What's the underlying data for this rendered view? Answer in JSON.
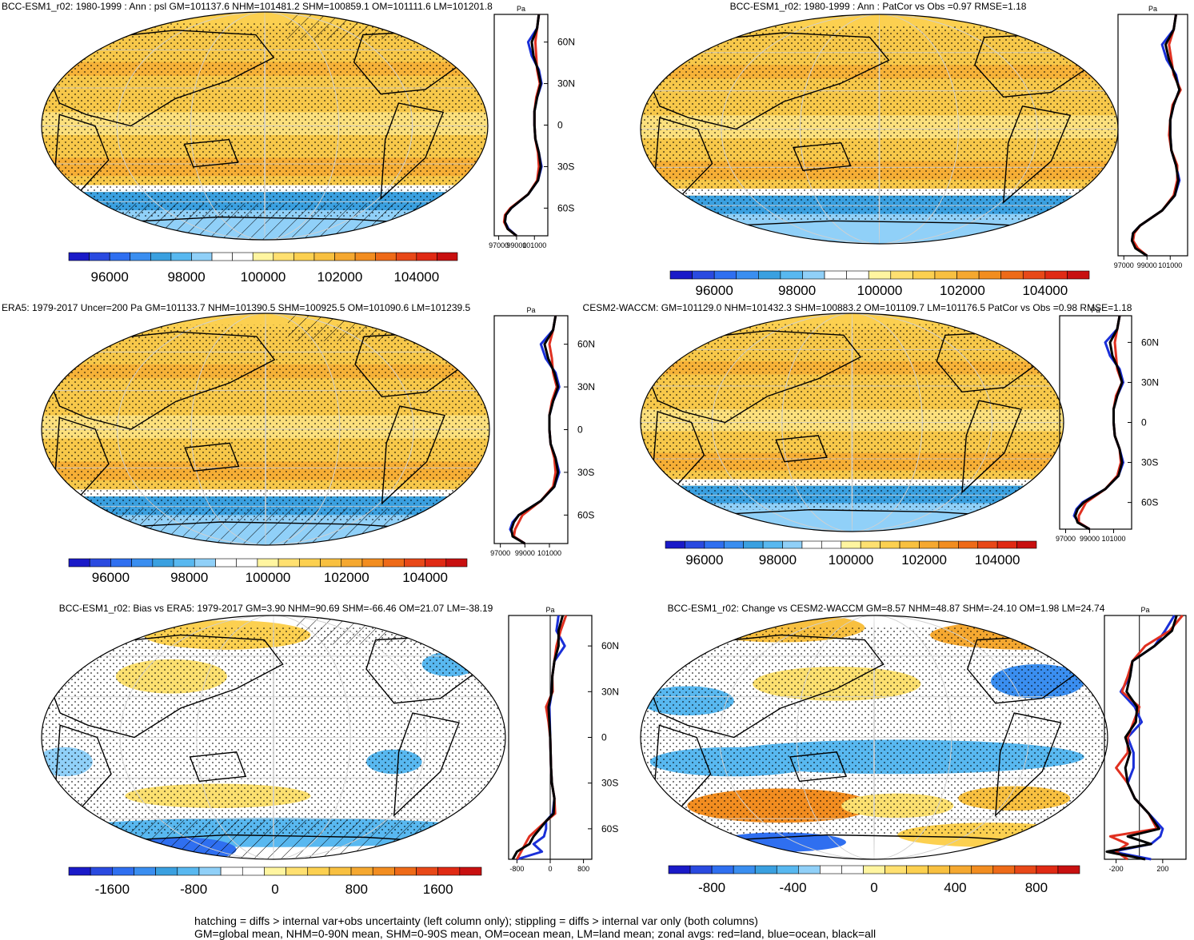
{
  "figure": {
    "footnote_line1": "hatching = diffs > internal var+obs uncertainty (left column only); stippling = diffs > internal var only (both columns)",
    "footnote_line2": "GM=global mean, NHM=0-90N mean, SHM=0-90S mean, OM=ocean mean, LM=land mean; zonal avgs: red=land, blue=ocean, black=all"
  },
  "colors": {
    "ocean_band": "#3aa0e0",
    "land": "#e03020",
    "ocean": "#1a2fd8",
    "all": "#000000",
    "map_base": "#f7c84a"
  },
  "chart_data": [
    {
      "id": "model_climatology",
      "type": "map",
      "title": "BCC-ESM1_r02: 1980-1999 : Ann : psl GM=101137.6 NHM=101481.2 SHM=100859.1 OM=101111.6 LM=101201.8",
      "colorbar": {
        "ticks": [
          "96000",
          "98000",
          "100000",
          "102000",
          "104000"
        ],
        "colors": [
          "#1a1ac8",
          "#2a4ae0",
          "#2f6ff0",
          "#3a8ef0",
          "#3aa0e0",
          "#58b8f0",
          "#90d0f8",
          "#ffffff",
          "#ffffff",
          "#fff5a0",
          "#ffe070",
          "#fcd050",
          "#f8c040",
          "#f5a830",
          "#f28d20",
          "#ee6a18",
          "#e84818",
          "#e02a14",
          "#c81010"
        ]
      },
      "zonal_profile": {
        "unit": "Pa",
        "xticks": [
          "97000",
          "99000",
          "101000"
        ],
        "yticks": [
          "60N",
          "30N",
          "0",
          "30S",
          "60S"
        ],
        "xlim": [
          96500,
          102500
        ],
        "lat": [
          80,
          70,
          60,
          50,
          40,
          30,
          20,
          10,
          0,
          -10,
          -20,
          -30,
          -40,
          -50,
          -60,
          -65,
          -70,
          -75,
          -80
        ],
        "land": [
          101500,
          101300,
          101100,
          101200,
          101300,
          101600,
          101200,
          101000,
          101000,
          101100,
          101400,
          101500,
          101300,
          100300,
          98300,
          97700,
          97600,
          98000,
          99000
        ],
        "ocean": [
          101500,
          101300,
          100300,
          100700,
          101500,
          101800,
          101300,
          101000,
          101000,
          101100,
          101500,
          101800,
          101400,
          100300,
          98400,
          97800,
          97700,
          98100,
          99000
        ],
        "all": [
          101500,
          101300,
          100700,
          100900,
          101400,
          101700,
          101300,
          101000,
          101000,
          101100,
          101500,
          101700,
          101400,
          100300,
          98400,
          97800,
          97700,
          98000,
          99000
        ]
      }
    },
    {
      "id": "model_patcor",
      "type": "map",
      "title": "BCC-ESM1_r02: 1980-1999 : Ann : PatCor vs Obs =0.97 RMSE=1.18",
      "colorbar": {
        "ticks": [
          "96000",
          "98000",
          "100000",
          "102000",
          "104000"
        ],
        "colors": [
          "#1a1ac8",
          "#2a4ae0",
          "#2f6ff0",
          "#3a8ef0",
          "#3aa0e0",
          "#58b8f0",
          "#90d0f8",
          "#ffffff",
          "#ffffff",
          "#fff5a0",
          "#ffe070",
          "#fcd050",
          "#f8c040",
          "#f5a830",
          "#f28d20",
          "#ee6a18",
          "#e84818",
          "#e02a14",
          "#c81010"
        ]
      },
      "zonal_profile": {
        "unit": "Pa",
        "xticks": [
          "97000",
          "99000",
          "101000"
        ],
        "yticks": [],
        "xlim": [
          96500,
          102500
        ],
        "lat": [
          80,
          70,
          60,
          50,
          40,
          30,
          20,
          10,
          0,
          -10,
          -20,
          -30,
          -40,
          -50,
          -60,
          -65,
          -70,
          -75,
          -80
        ],
        "land": [
          101500,
          101300,
          100900,
          101100,
          101300,
          101900,
          101200,
          101000,
          100900,
          101100,
          101600,
          101600,
          101300,
          100300,
          98400,
          97900,
          97800,
          98200,
          99000
        ],
        "ocean": [
          101500,
          101300,
          100300,
          100700,
          101500,
          101800,
          101300,
          101000,
          101000,
          101100,
          101500,
          101800,
          101400,
          100300,
          98400,
          97800,
          97700,
          98100,
          99000
        ],
        "all": [
          101500,
          101300,
          100600,
          100900,
          101400,
          101800,
          101300,
          101000,
          101000,
          101100,
          101500,
          101700,
          101400,
          100300,
          98400,
          97800,
          97700,
          98000,
          99000
        ]
      }
    },
    {
      "id": "obs_climatology",
      "type": "map",
      "title": "ERA5: 1979-2017 Uncer=200 Pa GM=101133.7 NHM=101390.5 SHM=100925.5 OM=101090.6 LM=101239.5",
      "colorbar": {
        "ticks": [
          "96000",
          "98000",
          "100000",
          "102000",
          "104000"
        ],
        "colors": [
          "#1a1ac8",
          "#2a4ae0",
          "#2f6ff0",
          "#3a8ef0",
          "#3aa0e0",
          "#58b8f0",
          "#90d0f8",
          "#ffffff",
          "#ffffff",
          "#fff5a0",
          "#ffe070",
          "#fcd050",
          "#f8c040",
          "#f5a830",
          "#f28d20",
          "#ee6a18",
          "#e84818",
          "#e02a14",
          "#c81010"
        ]
      },
      "zonal_profile": {
        "unit": "Pa",
        "xticks": [
          "97000",
          "99000",
          "101000"
        ],
        "yticks": [
          "60N",
          "30N",
          "0",
          "30S",
          "60S"
        ],
        "xlim": [
          96500,
          102500
        ],
        "lat": [
          80,
          70,
          60,
          50,
          40,
          30,
          20,
          10,
          0,
          -10,
          -20,
          -30,
          -40,
          -50,
          -60,
          -65,
          -70,
          -75,
          -80
        ],
        "land": [
          101500,
          101300,
          101000,
          101200,
          101300,
          101600,
          101200,
          101000,
          101000,
          101100,
          101400,
          101500,
          101300,
          100300,
          98800,
          98500,
          98200,
          98100,
          99000
        ],
        "ocean": [
          101500,
          101300,
          100300,
          100700,
          101500,
          101800,
          101300,
          101000,
          101000,
          101100,
          101500,
          101800,
          101400,
          100300,
          98500,
          98000,
          97800,
          98100,
          99000
        ],
        "all": [
          101500,
          101300,
          100600,
          100900,
          101400,
          101700,
          101300,
          101000,
          101000,
          101100,
          101500,
          101700,
          101400,
          100300,
          98500,
          98100,
          97900,
          98000,
          99000
        ]
      }
    },
    {
      "id": "cmip_reference",
      "type": "map",
      "title": "CESM2-WACCM: GM=101129.0 NHM=101432.3 SHM=100883.2 OM=101109.7 LM=101176.5 PatCor vs Obs =0.98 RMSE=1.18",
      "colorbar": {
        "ticks": [
          "96000",
          "98000",
          "100000",
          "102000",
          "104000"
        ],
        "colors": [
          "#1a1ac8",
          "#2a4ae0",
          "#2f6ff0",
          "#3a8ef0",
          "#3aa0e0",
          "#58b8f0",
          "#90d0f8",
          "#ffffff",
          "#ffffff",
          "#fff5a0",
          "#ffe070",
          "#fcd050",
          "#f8c040",
          "#f5a830",
          "#f28d20",
          "#ee6a18",
          "#e84818",
          "#e02a14",
          "#c81010"
        ]
      },
      "zonal_profile": {
        "unit": "Pa",
        "xticks": [
          "97000",
          "99000",
          "101000"
        ],
        "yticks": [
          "60N",
          "30N",
          "0",
          "30S",
          "60S"
        ],
        "xlim": [
          96500,
          102500
        ],
        "lat": [
          80,
          70,
          60,
          50,
          40,
          30,
          20,
          10,
          0,
          -10,
          -20,
          -30,
          -40,
          -50,
          -60,
          -65,
          -70,
          -75,
          -80
        ],
        "land": [
          101500,
          101300,
          101100,
          101200,
          101300,
          101700,
          101200,
          101000,
          101000,
          101100,
          101500,
          101600,
          101300,
          100300,
          98700,
          98400,
          98100,
          98100,
          99000
        ],
        "ocean": [
          101500,
          101300,
          100300,
          100700,
          101500,
          101800,
          101300,
          101000,
          101000,
          101100,
          101500,
          101800,
          101400,
          100300,
          98400,
          97900,
          97700,
          98100,
          99000
        ],
        "all": [
          101500,
          101300,
          100700,
          100900,
          101400,
          101700,
          101300,
          101000,
          101000,
          101100,
          101500,
          101700,
          101400,
          100300,
          98500,
          98000,
          97800,
          98000,
          99000
        ]
      }
    },
    {
      "id": "bias_vs_obs",
      "type": "map",
      "title": "BCC-ESM1_r02: Bias vs ERA5: 1979-2017 GM=3.90 NHM=90.69 SHM=-66.46 OM=21.07 LM=-38.19",
      "colorbar": {
        "ticks": [
          "-1600",
          "-800",
          "0",
          "800",
          "1600"
        ],
        "colors": [
          "#1a1ac8",
          "#2a4ae0",
          "#2f6ff0",
          "#3a8ef0",
          "#3aa0e0",
          "#58b8f0",
          "#90d0f8",
          "#ffffff",
          "#ffffff",
          "#fff5a0",
          "#ffe070",
          "#fcd050",
          "#f8c040",
          "#f5a830",
          "#f28d20",
          "#ee6a18",
          "#e84818",
          "#e02a14",
          "#c81010"
        ]
      },
      "zonal_profile": {
        "unit": "Pa",
        "xticks": [
          "-800",
          "0",
          "800"
        ],
        "yticks": [
          "60N",
          "30N",
          "0",
          "30S",
          "60S"
        ],
        "xlim": [
          -1000,
          1000
        ],
        "lat": [
          80,
          70,
          60,
          50,
          40,
          30,
          20,
          10,
          0,
          -10,
          -20,
          -30,
          -40,
          -50,
          -55,
          -60,
          -65,
          -70,
          -75,
          -80
        ],
        "land": [
          380,
          250,
          150,
          100,
          50,
          60,
          -100,
          -40,
          0,
          10,
          20,
          40,
          100,
          120,
          -100,
          -300,
          -500,
          -600,
          -700,
          -800
        ],
        "ocean": [
          200,
          150,
          350,
          100,
          50,
          40,
          -20,
          -10,
          0,
          10,
          20,
          40,
          100,
          60,
          -100,
          -100,
          -150,
          -400,
          -200,
          -800
        ],
        "all": [
          300,
          200,
          200,
          100,
          50,
          40,
          -40,
          -20,
          0,
          10,
          20,
          40,
          100,
          80,
          -100,
          -250,
          -400,
          -500,
          -800,
          -900
        ]
      }
    },
    {
      "id": "change_vs_cmip",
      "type": "map",
      "title": "BCC-ESM1_r02: Change vs CESM2-WACCM GM=8.57 NHM=48.87 SHM=-24.10 OM=1.98 LM=24.74",
      "colorbar": {
        "ticks": [
          "-800",
          "-400",
          "0",
          "400",
          "800"
        ],
        "colors": [
          "#1a1ac8",
          "#2a4ae0",
          "#2f6ff0",
          "#3a8ef0",
          "#3aa0e0",
          "#58b8f0",
          "#90d0f8",
          "#ffffff",
          "#ffffff",
          "#fff5a0",
          "#ffe070",
          "#fcd050",
          "#f8c040",
          "#f5a830",
          "#f28d20",
          "#ee6a18",
          "#e84818",
          "#e02a14",
          "#c81010"
        ]
      },
      "zonal_profile": {
        "unit": "Pa",
        "xticks": [
          "-200",
          "200"
        ],
        "yticks": [],
        "xlim": [
          -300,
          400
        ],
        "lat": [
          80,
          70,
          60,
          50,
          40,
          30,
          20,
          10,
          0,
          -10,
          -20,
          -30,
          -40,
          -50,
          -60,
          -65,
          -70,
          -75,
          -80
        ],
        "land": [
          370,
          260,
          50,
          -60,
          -100,
          -150,
          0,
          -50,
          -100,
          -100,
          -200,
          -100,
          -40,
          80,
          150,
          -250,
          -100,
          -200,
          -100
        ],
        "ocean": [
          300,
          220,
          130,
          -60,
          -80,
          -160,
          -40,
          20,
          -100,
          -50,
          -50,
          -100,
          -40,
          80,
          200,
          180,
          100,
          -230,
          100
        ],
        "all": [
          320,
          280,
          130,
          -60,
          -80,
          -110,
          -20,
          -30,
          -120,
          -80,
          -120,
          -100,
          -40,
          80,
          170,
          -100,
          100,
          -280,
          50
        ]
      }
    }
  ]
}
